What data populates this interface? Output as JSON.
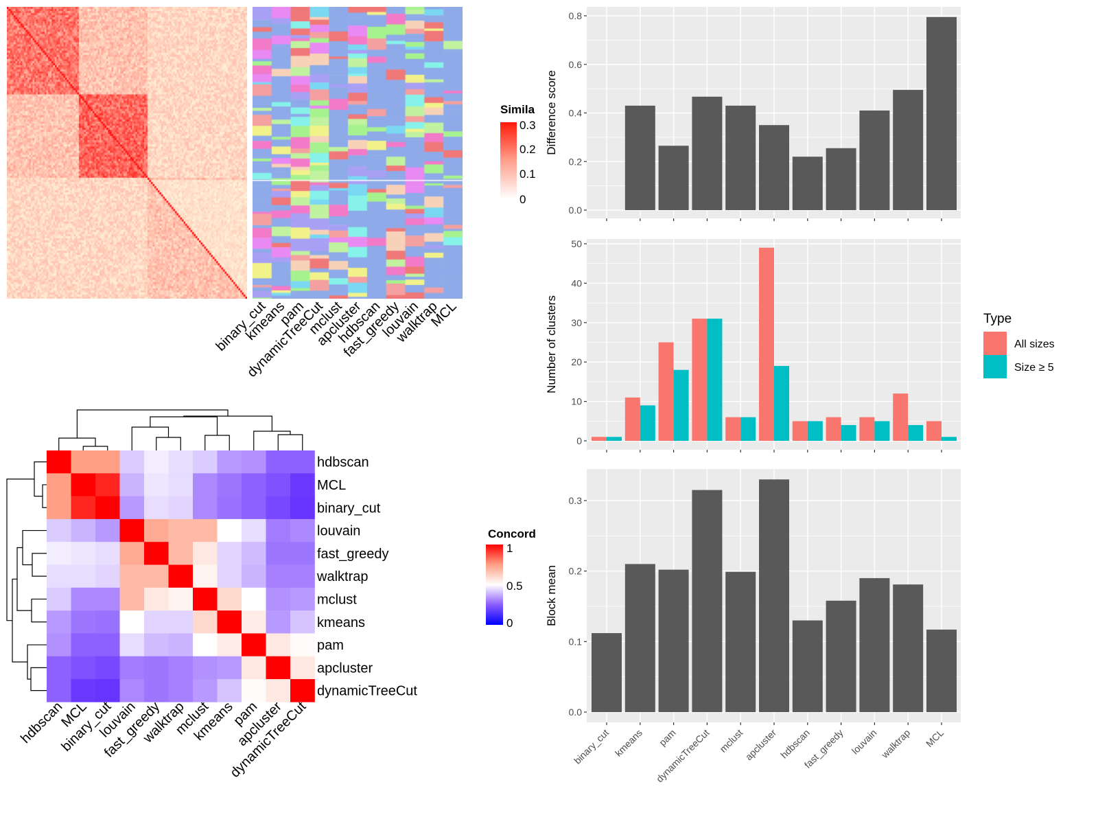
{
  "chart_data": [
    {
      "type": "heatmap",
      "legend_title": "Simila",
      "legend_ticks": [
        "0.3",
        "0.2",
        "0.1",
        "0"
      ],
      "annotation_columns": [
        "binary_cut",
        "kmeans",
        "pam",
        "dynamicTreeCut",
        "mclust",
        "apcluster",
        "hdbscan",
        "fast_greedy",
        "louvain",
        "walktrap",
        "MCL"
      ],
      "colors": {
        "low": "#ffffff",
        "high": "#ff0000",
        "annotation_base": "#8eaae8"
      }
    },
    {
      "type": "heatmap",
      "legend_title": "Concord",
      "legend_ticks": [
        "1",
        "0.5",
        "0"
      ],
      "rows": [
        "hdbscan",
        "MCL",
        "binary_cut",
        "louvain",
        "fast_greedy",
        "walktrap",
        "mclust",
        "kmeans",
        "pam",
        "apcluster",
        "dynamicTreeCut"
      ],
      "cols": [
        "hdbscan",
        "MCL",
        "binary_cut",
        "louvain",
        "fast_greedy",
        "walktrap",
        "mclust",
        "kmeans",
        "pam",
        "apcluster",
        "dynamicTreeCut"
      ],
      "values": [
        [
          1,
          0.75,
          0.75,
          0.44,
          0.48,
          0.46,
          0.44,
          0.38,
          0.37,
          0.29,
          0.29
        ],
        [
          0.75,
          1,
          0.94,
          0.41,
          0.47,
          0.46,
          0.36,
          0.33,
          0.29,
          0.26,
          0.21
        ],
        [
          0.75,
          0.94,
          1,
          0.38,
          0.46,
          0.45,
          0.36,
          0.32,
          0.29,
          0.24,
          0.2
        ],
        [
          0.44,
          0.41,
          0.38,
          1,
          0.72,
          0.68,
          0.68,
          0.5,
          0.46,
          0.34,
          0.36
        ],
        [
          0.48,
          0.47,
          0.46,
          0.72,
          1,
          0.68,
          0.56,
          0.45,
          0.42,
          0.33,
          0.33
        ],
        [
          0.46,
          0.46,
          0.45,
          0.68,
          0.68,
          1,
          0.53,
          0.45,
          0.41,
          0.35,
          0.35
        ],
        [
          0.44,
          0.36,
          0.36,
          0.68,
          0.56,
          0.53,
          1,
          0.6,
          0.5,
          0.37,
          0.38
        ],
        [
          0.38,
          0.33,
          0.32,
          0.5,
          0.45,
          0.45,
          0.6,
          1,
          0.55,
          0.38,
          0.43
        ],
        [
          0.37,
          0.29,
          0.29,
          0.46,
          0.42,
          0.41,
          0.5,
          0.55,
          1,
          0.56,
          0.51
        ],
        [
          0.29,
          0.26,
          0.24,
          0.34,
          0.33,
          0.35,
          0.37,
          0.38,
          0.56,
          1,
          0.56
        ],
        [
          0.29,
          0.21,
          0.2,
          0.36,
          0.33,
          0.35,
          0.38,
          0.43,
          0.51,
          0.56,
          1
        ]
      ],
      "colors": {
        "low": "#0000ff",
        "mid": "#ffffff",
        "high": "#ff0000"
      }
    },
    {
      "type": "bar",
      "ylabel": "Difference score",
      "categories": [
        "binary_cut",
        "kmeans",
        "pam",
        "dynamicTreeCut",
        "mclust",
        "apcluster",
        "hdbscan",
        "fast_greedy",
        "louvain",
        "walktrap",
        "MCL"
      ],
      "values": [
        0,
        0.43,
        0.265,
        0.467,
        0.43,
        0.35,
        0.22,
        0.255,
        0.41,
        0.495,
        0.795
      ],
      "ylim": [
        0,
        0.8
      ],
      "yticks": [
        "0.0",
        "0.2",
        "0.4",
        "0.6",
        "0.8"
      ],
      "bar_color": "#595959"
    },
    {
      "type": "bar",
      "ylabel": "Number of clusters",
      "categories": [
        "binary_cut",
        "kmeans",
        "pam",
        "dynamicTreeCut",
        "mclust",
        "apcluster",
        "hdbscan",
        "fast_greedy",
        "louvain",
        "walktrap",
        "MCL"
      ],
      "series": [
        {
          "name": "All sizes",
          "color": "#F8766D",
          "values": [
            1,
            11,
            25,
            31,
            6,
            49,
            5,
            6,
            6,
            12,
            5
          ]
        },
        {
          "name": "Size ≥ 5",
          "color": "#00BFC4",
          "values": [
            1,
            9,
            18,
            31,
            6,
            19,
            5,
            4,
            5,
            4,
            1
          ]
        }
      ],
      "ylim": [
        0,
        50
      ],
      "yticks": [
        "0",
        "10",
        "20",
        "30",
        "40",
        "50"
      ],
      "legend_title": "Type",
      "legend_position": "right"
    },
    {
      "type": "bar",
      "ylabel": "Block mean",
      "categories": [
        "binary_cut",
        "kmeans",
        "pam",
        "dynamicTreeCut",
        "mclust",
        "apcluster",
        "hdbscan",
        "fast_greedy",
        "louvain",
        "walktrap",
        "MCL"
      ],
      "values": [
        0.112,
        0.21,
        0.202,
        0.315,
        0.199,
        0.33,
        0.13,
        0.158,
        0.19,
        0.181,
        0.117
      ],
      "ylim": [
        0,
        0.33
      ],
      "yticks": [
        "0.0",
        "0.1",
        "0.2",
        "0.3"
      ],
      "bar_color": "#595959"
    }
  ]
}
